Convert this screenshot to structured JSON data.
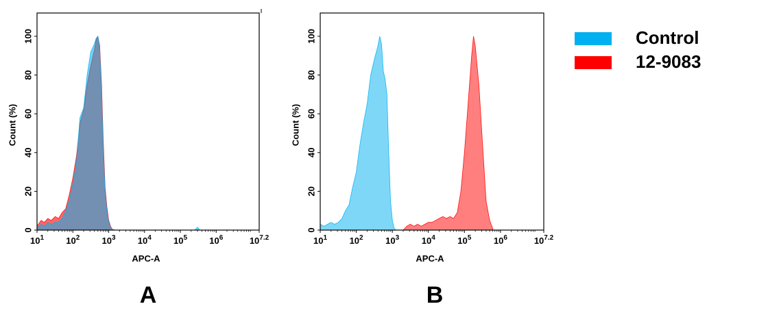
{
  "chart_data": [
    {
      "type": "area",
      "panel_label": "A",
      "xlabel": "APC-A",
      "ylabel": "Count  (%)",
      "xscale": "log",
      "xlim": [
        10,
        15848932
      ],
      "ylim": [
        0,
        112
      ],
      "xticks": [
        {
          "value": 10,
          "base": "10",
          "exp": "1"
        },
        {
          "value": 100,
          "base": "10",
          "exp": "2"
        },
        {
          "value": 1000,
          "base": "10",
          "exp": "3"
        },
        {
          "value": 10000,
          "base": "10",
          "exp": "4"
        },
        {
          "value": 100000,
          "base": "10",
          "exp": "5"
        },
        {
          "value": 1000000,
          "base": "10",
          "exp": "6"
        },
        {
          "value": 15848932,
          "base": "10",
          "exp": "7.2"
        }
      ],
      "yticks": [
        0,
        20,
        40,
        60,
        80,
        100
      ],
      "grid": false,
      "series": [
        {
          "name": "12-9083",
          "color": "#ff0000",
          "opacity": 0.6,
          "points": [
            [
              10,
              2
            ],
            [
              13,
              5
            ],
            [
              16,
              4
            ],
            [
              20,
              6
            ],
            [
              25,
              5
            ],
            [
              32,
              7
            ],
            [
              40,
              6
            ],
            [
              50,
              9
            ],
            [
              63,
              11
            ],
            [
              79,
              18
            ],
            [
              100,
              27
            ],
            [
              126,
              38
            ],
            [
              158,
              55
            ],
            [
              200,
              62
            ],
            [
              251,
              75
            ],
            [
              316,
              85
            ],
            [
              398,
              93
            ],
            [
              447,
              98
            ],
            [
              501,
              100
            ],
            [
              562,
              95
            ],
            [
              631,
              75
            ],
            [
              708,
              45
            ],
            [
              794,
              22
            ],
            [
              891,
              12
            ],
            [
              1000,
              5
            ],
            [
              1122,
              2
            ],
            [
              1259,
              0.5
            ],
            [
              1500,
              0
            ]
          ]
        },
        {
          "name": "Control",
          "color": "#00b0f0",
          "opacity": 0.55,
          "points": [
            [
              10,
              1
            ],
            [
              13,
              3
            ],
            [
              16,
              2
            ],
            [
              20,
              4
            ],
            [
              25,
              3
            ],
            [
              32,
              4
            ],
            [
              40,
              4
            ],
            [
              50,
              6
            ],
            [
              63,
              10
            ],
            [
              79,
              15
            ],
            [
              100,
              24
            ],
            [
              126,
              35
            ],
            [
              158,
              58
            ],
            [
              200,
              63
            ],
            [
              251,
              80
            ],
            [
              316,
              92
            ],
            [
              398,
              96
            ],
            [
              447,
              99
            ],
            [
              501,
              100
            ],
            [
              562,
              93
            ],
            [
              631,
              70
            ],
            [
              708,
              40
            ],
            [
              794,
              20
            ],
            [
              891,
              10
            ],
            [
              1000,
              4
            ],
            [
              1122,
              1.5
            ],
            [
              1259,
              0.5
            ],
            [
              1500,
              0
            ],
            [
              250000,
              0
            ],
            [
              300000,
              1.5
            ],
            [
              350000,
              0
            ],
            [
              500000,
              0
            ]
          ]
        }
      ]
    },
    {
      "type": "area",
      "panel_label": "B",
      "xlabel": "APC-A",
      "ylabel": "Count  (%)",
      "xscale": "log",
      "xlim": [
        10,
        15848932
      ],
      "ylim": [
        0,
        112
      ],
      "xticks": [
        {
          "value": 10,
          "base": "10",
          "exp": "1"
        },
        {
          "value": 100,
          "base": "10",
          "exp": "2"
        },
        {
          "value": 1000,
          "base": "10",
          "exp": "3"
        },
        {
          "value": 10000,
          "base": "10",
          "exp": "4"
        },
        {
          "value": 100000,
          "base": "10",
          "exp": "5"
        },
        {
          "value": 1000000,
          "base": "10",
          "exp": "6"
        },
        {
          "value": 15848932,
          "base": "10",
          "exp": "7.2"
        }
      ],
      "yticks": [
        0,
        20,
        40,
        60,
        80,
        100
      ],
      "grid": false,
      "series": [
        {
          "name": "Control",
          "color": "#00b0f0",
          "opacity": 0.5,
          "points": [
            [
              10,
              3
            ],
            [
              13,
              2
            ],
            [
              16,
              3
            ],
            [
              20,
              4
            ],
            [
              25,
              3
            ],
            [
              32,
              4
            ],
            [
              40,
              6
            ],
            [
              50,
              10
            ],
            [
              63,
              13
            ],
            [
              79,
              22
            ],
            [
              100,
              30
            ],
            [
              126,
              44
            ],
            [
              158,
              55
            ],
            [
              200,
              65
            ],
            [
              251,
              80
            ],
            [
              316,
              88
            ],
            [
              398,
              95
            ],
            [
              447,
              100
            ],
            [
              501,
              96
            ],
            [
              562,
              82
            ],
            [
              631,
              78
            ],
            [
              708,
              70
            ],
            [
              794,
              40
            ],
            [
              891,
              15
            ],
            [
              1000,
              5
            ],
            [
              1122,
              1
            ],
            [
              1259,
              0
            ]
          ]
        },
        {
          "name": "12-9083",
          "color": "#ff0000",
          "opacity": 0.5,
          "points": [
            [
              2000,
              0
            ],
            [
              2512,
              2
            ],
            [
              3162,
              3
            ],
            [
              3981,
              2
            ],
            [
              5012,
              3
            ],
            [
              6310,
              2
            ],
            [
              7943,
              3
            ],
            [
              10000,
              4
            ],
            [
              12589,
              4
            ],
            [
              15849,
              5
            ],
            [
              19953,
              6
            ],
            [
              25119,
              7
            ],
            [
              31623,
              6
            ],
            [
              39811,
              7
            ],
            [
              50119,
              6
            ],
            [
              63096,
              9
            ],
            [
              79433,
              20
            ],
            [
              100000,
              40
            ],
            [
              125893,
              65
            ],
            [
              158489,
              90
            ],
            [
              177828,
              100
            ],
            [
              199526,
              95
            ],
            [
              251189,
              75
            ],
            [
              316228,
              45
            ],
            [
              398107,
              15
            ],
            [
              501187,
              5
            ],
            [
              630957,
              0
            ]
          ]
        }
      ]
    }
  ],
  "legend": {
    "position": "top-right",
    "items": [
      {
        "label": "Control",
        "color": "#00b0f0"
      },
      {
        "label": "12-9083",
        "color": "#ff0000"
      }
    ]
  }
}
